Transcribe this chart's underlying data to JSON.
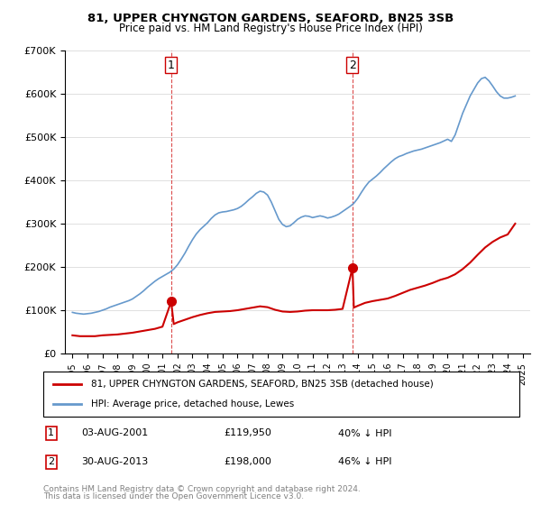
{
  "title1": "81, UPPER CHYNGTON GARDENS, SEAFORD, BN25 3SB",
  "title2": "Price paid vs. HM Land Registry's House Price Index (HPI)",
  "legend1": "81, UPPER CHYNGTON GARDENS, SEAFORD, BN25 3SB (detached house)",
  "legend2": "HPI: Average price, detached house, Lewes",
  "footnote": "Contains HM Land Registry data © Crown copyright and database right 2024.\nThis data is licensed under the Open Government Licence v3.0.",
  "sale1_date": "03-AUG-2001",
  "sale1_price": "£119,950",
  "sale1_hpi": "40% ↓ HPI",
  "sale1_x": 2001.58,
  "sale1_y": 119950,
  "sale2_date": "30-AUG-2013",
  "sale2_price": "£198,000",
  "sale2_hpi": "46% ↓ HPI",
  "sale2_x": 2013.66,
  "sale2_y": 198000,
  "red_color": "#cc0000",
  "blue_color": "#6699cc",
  "ylim": [
    0,
    700000
  ],
  "xlim_left": 1994.5,
  "xlim_right": 2025.5,
  "hpi_years": [
    1995.0,
    1995.25,
    1995.5,
    1995.75,
    1996.0,
    1996.25,
    1996.5,
    1996.75,
    1997.0,
    1997.25,
    1997.5,
    1997.75,
    1998.0,
    1998.25,
    1998.5,
    1998.75,
    1999.0,
    1999.25,
    1999.5,
    1999.75,
    2000.0,
    2000.25,
    2000.5,
    2000.75,
    2001.0,
    2001.25,
    2001.5,
    2001.75,
    2002.0,
    2002.25,
    2002.5,
    2002.75,
    2003.0,
    2003.25,
    2003.5,
    2003.75,
    2004.0,
    2004.25,
    2004.5,
    2004.75,
    2005.0,
    2005.25,
    2005.5,
    2005.75,
    2006.0,
    2006.25,
    2006.5,
    2006.75,
    2007.0,
    2007.25,
    2007.5,
    2007.75,
    2008.0,
    2008.25,
    2008.5,
    2008.75,
    2009.0,
    2009.25,
    2009.5,
    2009.75,
    2010.0,
    2010.25,
    2010.5,
    2010.75,
    2011.0,
    2011.25,
    2011.5,
    2011.75,
    2012.0,
    2012.25,
    2012.5,
    2012.75,
    2013.0,
    2013.25,
    2013.5,
    2013.75,
    2014.0,
    2014.25,
    2014.5,
    2014.75,
    2015.0,
    2015.25,
    2015.5,
    2015.75,
    2016.0,
    2016.25,
    2016.5,
    2016.75,
    2017.0,
    2017.25,
    2017.5,
    2017.75,
    2018.0,
    2018.25,
    2018.5,
    2018.75,
    2019.0,
    2019.25,
    2019.5,
    2019.75,
    2020.0,
    2020.25,
    2020.5,
    2020.75,
    2021.0,
    2021.25,
    2021.5,
    2021.75,
    2022.0,
    2022.25,
    2022.5,
    2022.75,
    2023.0,
    2023.25,
    2023.5,
    2023.75,
    2024.0,
    2024.25,
    2024.5
  ],
  "hpi_values": [
    95000,
    93000,
    92000,
    91000,
    92000,
    93000,
    95000,
    97000,
    100000,
    103000,
    107000,
    110000,
    113000,
    116000,
    119000,
    122000,
    126000,
    132000,
    138000,
    145000,
    153000,
    160000,
    167000,
    173000,
    178000,
    183000,
    188000,
    195000,
    205000,
    218000,
    232000,
    248000,
    263000,
    276000,
    286000,
    294000,
    302000,
    312000,
    320000,
    325000,
    327000,
    328000,
    330000,
    332000,
    335000,
    340000,
    347000,
    355000,
    362000,
    370000,
    375000,
    373000,
    366000,
    350000,
    330000,
    310000,
    298000,
    293000,
    295000,
    302000,
    310000,
    315000,
    318000,
    317000,
    314000,
    316000,
    318000,
    316000,
    313000,
    315000,
    318000,
    322000,
    328000,
    334000,
    340000,
    347000,
    358000,
    372000,
    385000,
    396000,
    403000,
    410000,
    418000,
    427000,
    435000,
    443000,
    450000,
    455000,
    458000,
    462000,
    465000,
    468000,
    470000,
    472000,
    475000,
    478000,
    481000,
    484000,
    487000,
    491000,
    495000,
    490000,
    505000,
    530000,
    555000,
    575000,
    595000,
    610000,
    625000,
    635000,
    638000,
    630000,
    618000,
    605000,
    595000,
    590000,
    590000,
    592000,
    595000
  ],
  "red_years": [
    1995.0,
    1995.5,
    1996.0,
    1996.5,
    1997.0,
    1997.5,
    1998.0,
    1998.5,
    1999.0,
    1999.5,
    2000.0,
    2000.5,
    2001.0,
    2001.58,
    2001.75,
    2002.0,
    2002.5,
    2003.0,
    2003.5,
    2004.0,
    2004.5,
    2005.0,
    2005.5,
    2006.0,
    2006.5,
    2007.0,
    2007.5,
    2008.0,
    2008.5,
    2009.0,
    2009.5,
    2010.0,
    2010.5,
    2011.0,
    2011.5,
    2012.0,
    2012.5,
    2013.0,
    2013.66,
    2013.75,
    2014.0,
    2014.5,
    2015.0,
    2015.5,
    2016.0,
    2016.5,
    2017.0,
    2017.5,
    2018.0,
    2018.5,
    2019.0,
    2019.5,
    2020.0,
    2020.5,
    2021.0,
    2021.5,
    2022.0,
    2022.5,
    2023.0,
    2023.5,
    2024.0,
    2024.5
  ],
  "red_values": [
    42000,
    40000,
    40000,
    40000,
    42000,
    43000,
    44000,
    46000,
    48000,
    51000,
    54000,
    57000,
    62000,
    119950,
    68000,
    72000,
    78000,
    84000,
    89000,
    93000,
    96000,
    97000,
    98000,
    100000,
    103000,
    106000,
    109000,
    107000,
    101000,
    97000,
    96000,
    97000,
    99000,
    100000,
    100000,
    100000,
    101000,
    103000,
    198000,
    106000,
    110000,
    117000,
    121000,
    124000,
    127000,
    133000,
    140000,
    147000,
    152000,
    157000,
    163000,
    170000,
    175000,
    183000,
    195000,
    210000,
    228000,
    245000,
    258000,
    268000,
    275000,
    300000
  ]
}
